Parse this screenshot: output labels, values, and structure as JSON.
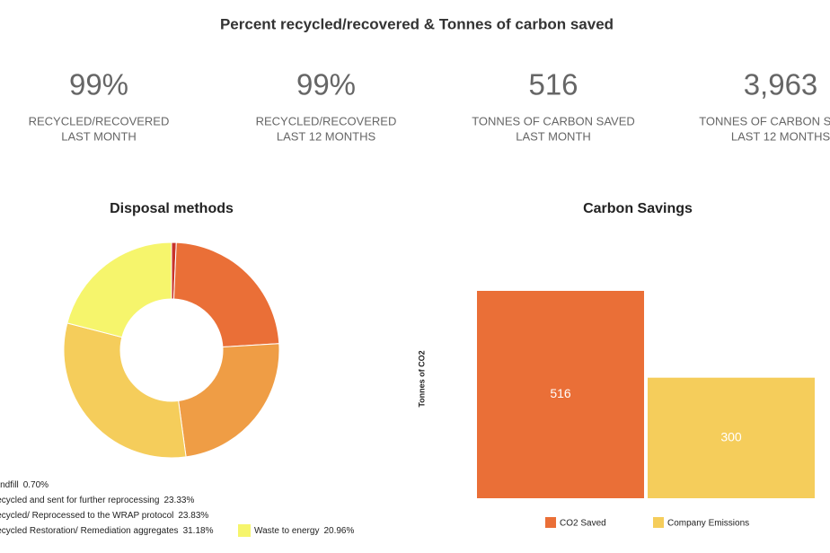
{
  "title": "Percent recycled/recovered & Tonnes of carbon saved",
  "stats": [
    {
      "value": "99%",
      "label": [
        "RECYCLED/RECOVERED",
        "LAST MONTH"
      ]
    },
    {
      "value": "99%",
      "label": [
        "RECYCLED/RECOVERED",
        "LAST 12 MONTHS"
      ]
    },
    {
      "value": "516",
      "label": [
        "TONNES OF CARBON SAVED",
        "LAST MONTH"
      ]
    },
    {
      "value": "3,963",
      "label": [
        "TONNES OF CARBON SAVED",
        "LAST 12 MONTHS"
      ]
    }
  ],
  "chart_data": [
    {
      "type": "donut",
      "title": "Disposal methods",
      "categories": [
        "Landfill",
        "Recycled and sent for further reprocessing",
        "Recycled/ Reprocessed to the WRAP protocol",
        "Recycled Restoration/ Remediation aggregates",
        "Waste to energy"
      ],
      "values": [
        0.7,
        23.33,
        23.83,
        31.18,
        20.96
      ],
      "value_labels": [
        "0.70%",
        "23.33%",
        "23.83%",
        "31.18%",
        "20.96%"
      ],
      "colors": [
        "#c8342a",
        "#ea6f37",
        "#ef9d45",
        "#f5cd5b",
        "#f6f56c"
      ]
    },
    {
      "type": "bar",
      "title": "Carbon Savings",
      "y_label": "Tonnes of CO2",
      "series": [
        {
          "name": "CO2 Saved",
          "color": "#ea6f37",
          "values": [
            516
          ]
        },
        {
          "name": "Company Emissions",
          "color": "#f5cd5b",
          "values": [
            300
          ]
        }
      ],
      "ylim": [
        0,
        600
      ]
    }
  ]
}
